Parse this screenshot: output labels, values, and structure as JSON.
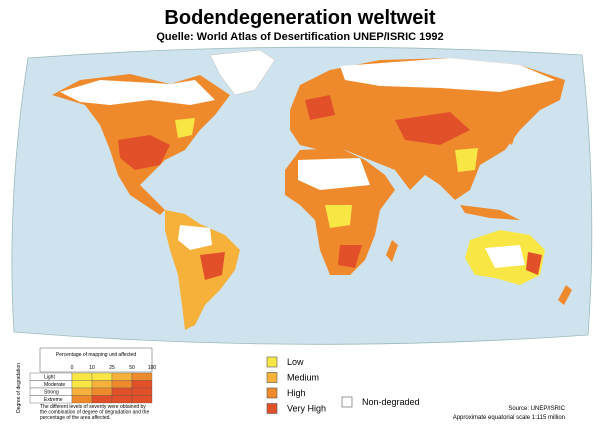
{
  "header": {
    "title": "Bodendegeneration weltweit",
    "subtitle": "Quelle: World Atlas of Desertification UNEP/ISRIC 1992"
  },
  "legend": {
    "items": [
      {
        "label": "Low",
        "color": "#f8e645"
      },
      {
        "label": "Medium",
        "color": "#f6b13a"
      },
      {
        "label": "High",
        "color": "#ef8a2c"
      },
      {
        "label": "Very High",
        "color": "#e2502a"
      },
      {
        "label": "Non-degraded",
        "color": "#ffffff"
      }
    ]
  },
  "matrix": {
    "title": "Percentage of mapping unit affected",
    "columns": [
      "0",
      "10",
      "25",
      "50",
      "100"
    ],
    "axis_label": "Degree of degradation",
    "rows": [
      "Light",
      "Moderate",
      "Strong",
      "Extreme"
    ],
    "note": [
      "The different levels of severity were obtained by",
      "the combination of degree of degradation and the",
      "percentage of the area affected."
    ]
  },
  "footer": {
    "source": "Source: UNEP/ISRIC",
    "scale": "Approximate equatorial scale 1:115 million"
  }
}
